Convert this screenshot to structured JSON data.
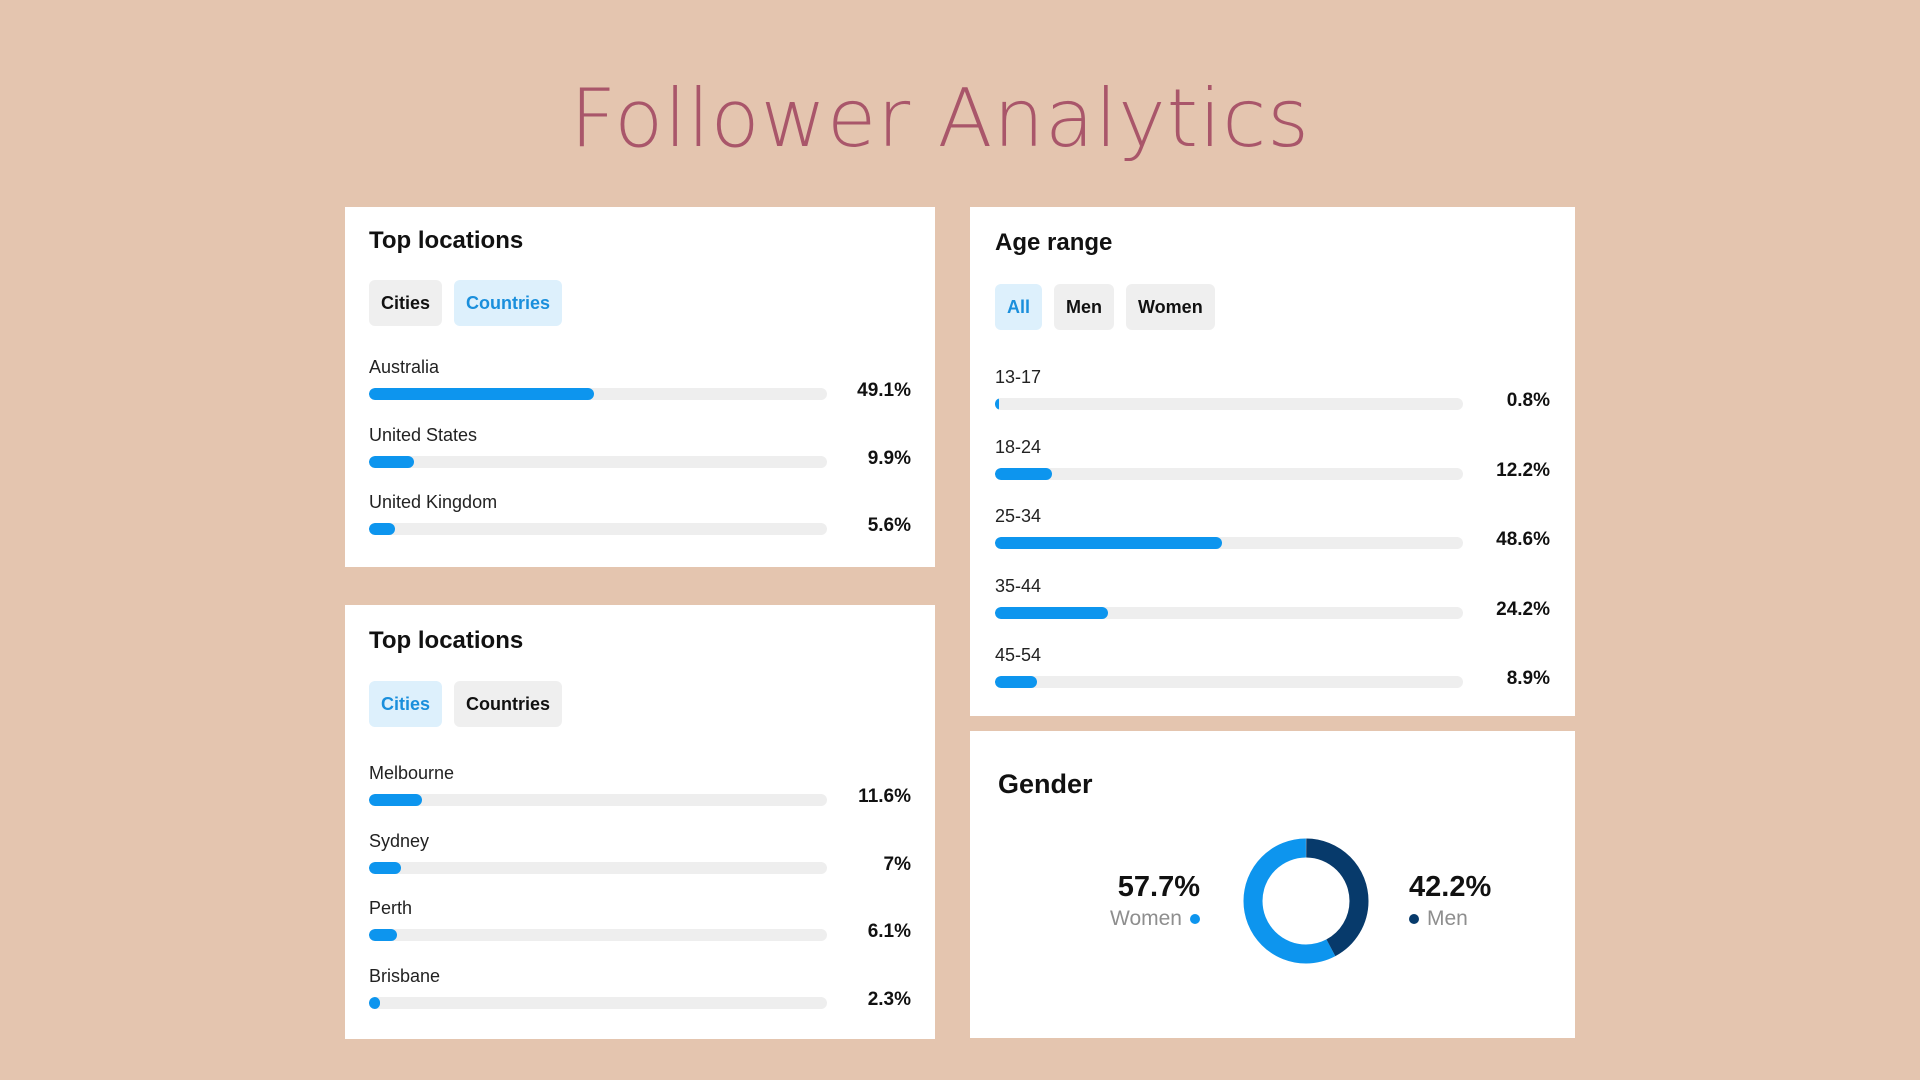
{
  "page_title": "Follower Analytics",
  "locations_countries": {
    "title": "Top locations",
    "tabs": [
      {
        "label": "Cities",
        "active": false
      },
      {
        "label": "Countries",
        "active": true
      }
    ],
    "rows": [
      {
        "label": "Australia",
        "value": "49.1%",
        "pct": 49.1
      },
      {
        "label": "United States",
        "value": "9.9%",
        "pct": 9.9
      },
      {
        "label": "United Kingdom",
        "value": "5.6%",
        "pct": 5.6
      }
    ]
  },
  "locations_cities": {
    "title": "Top locations",
    "tabs": [
      {
        "label": "Cities",
        "active": true
      },
      {
        "label": "Countries",
        "active": false
      }
    ],
    "rows": [
      {
        "label": "Melbourne",
        "value": "11.6%",
        "pct": 11.6
      },
      {
        "label": "Sydney",
        "value": "7%",
        "pct": 7
      },
      {
        "label": "Perth",
        "value": "6.1%",
        "pct": 6.1
      },
      {
        "label": "Brisbane",
        "value": "2.3%",
        "pct": 2.3
      }
    ]
  },
  "age_range": {
    "title": "Age range",
    "tabs": [
      {
        "label": "All",
        "active": true
      },
      {
        "label": "Men",
        "active": false
      },
      {
        "label": "Women",
        "active": false
      }
    ],
    "rows": [
      {
        "label": "13-17",
        "value": "0.8%",
        "pct": 0.8
      },
      {
        "label": "18-24",
        "value": "12.2%",
        "pct": 12.2
      },
      {
        "label": "25-34",
        "value": "48.6%",
        "pct": 48.6
      },
      {
        "label": "35-44",
        "value": "24.2%",
        "pct": 24.2
      },
      {
        "label": "45-54",
        "value": "8.9%",
        "pct": 8.9
      }
    ]
  },
  "gender": {
    "title": "Gender",
    "women_value": "57.7%",
    "women_label": "Women",
    "women_pct": 57.7,
    "men_value": "42.2%",
    "men_label": "Men",
    "men_pct": 42.2
  },
  "colors": {
    "background": "#e4c5af",
    "title": "#a9566a",
    "bar": "#0d95ee",
    "track": "#eeeeee",
    "women": "#0d95ee",
    "men": "#073a6b",
    "active_tab_bg": "#ddf0fc",
    "active_tab_text": "#1a8fdc"
  }
}
